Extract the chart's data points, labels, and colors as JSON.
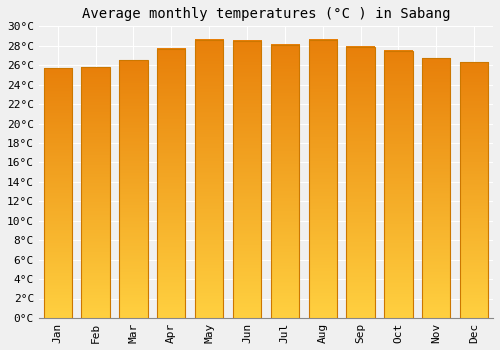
{
  "title": "Average monthly temperatures (°C ) in Sabang",
  "months": [
    "Jan",
    "Feb",
    "Mar",
    "Apr",
    "May",
    "Jun",
    "Jul",
    "Aug",
    "Sep",
    "Oct",
    "Nov",
    "Dec"
  ],
  "values": [
    25.7,
    25.8,
    26.5,
    27.7,
    28.6,
    28.5,
    28.1,
    28.6,
    27.9,
    27.5,
    26.7,
    26.3
  ],
  "bar_color": "#FFA500",
  "bar_top_color": "#E8800A",
  "bar_bottom_color": "#FFD040",
  "bar_edge_color": "#CC7700",
  "ylim": [
    0,
    30
  ],
  "ytick_step": 2,
  "background_color": "#f0f0f0",
  "plot_bg_color": "#f0f0f0",
  "grid_color": "#ffffff",
  "title_fontsize": 10,
  "tick_fontsize": 8,
  "font_family": "monospace"
}
